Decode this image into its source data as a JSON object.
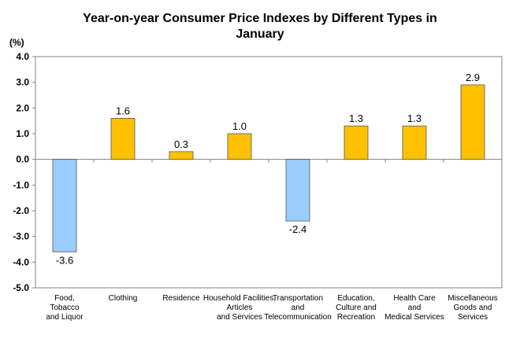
{
  "chart_data": {
    "type": "bar",
    "title_lines": [
      "Year-on-year Consumer Price Indexes by Different Types in",
      "January"
    ],
    "ylabel": "(%)",
    "ylim": [
      -5.0,
      4.0
    ],
    "yticks": [
      "4.0",
      "3.0",
      "2.0",
      "1.0",
      "0.0",
      "-1.0",
      "-2.0",
      "-3.0",
      "-4.0",
      "-5.0"
    ],
    "ytick_values": [
      4,
      3,
      2,
      1,
      0,
      -1,
      -2,
      -3,
      -4,
      -5
    ],
    "categories": [
      [
        "Food,",
        "Tobacco",
        "and Liquor"
      ],
      [
        "Clothing"
      ],
      [
        "Residence"
      ],
      [
        "Household Facilities,",
        "Articles",
        "and Services"
      ],
      [
        "Transportation",
        "and",
        "Telecommunication"
      ],
      [
        "Education,",
        "Culture and",
        "Recreation"
      ],
      [
        "Health Care",
        "and",
        "Medical Services"
      ],
      [
        "Miscellaneous",
        "Goods and",
        "Services"
      ]
    ],
    "values": [
      -3.6,
      1.6,
      0.3,
      1.0,
      -2.4,
      1.3,
      1.3,
      2.9
    ],
    "value_labels": [
      "-3.6",
      "1.6",
      "0.3",
      "1.0",
      "-2.4",
      "1.3",
      "1.3",
      "2.9"
    ],
    "colors": {
      "positive": "#FFC000",
      "negative": "#99CCFF",
      "outline": "#555555"
    },
    "grid": false
  }
}
